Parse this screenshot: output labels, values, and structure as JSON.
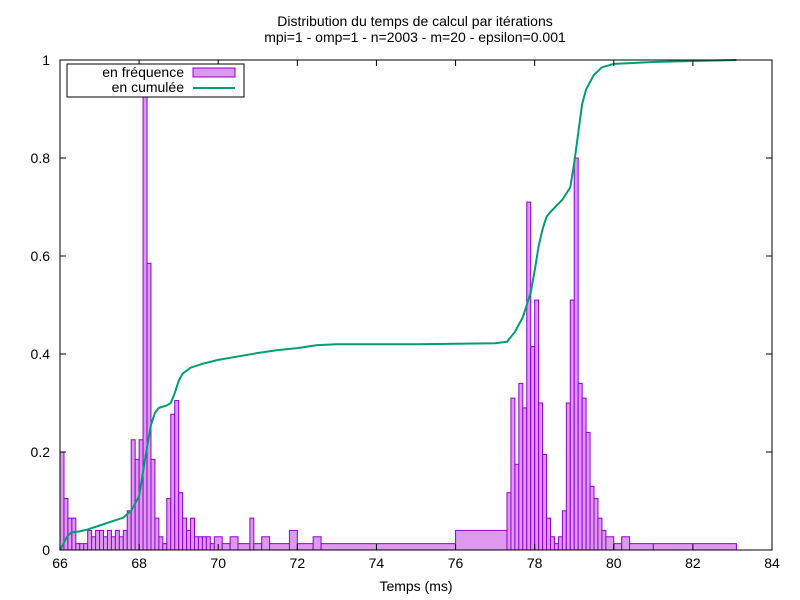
{
  "chart_data": {
    "type": "bar",
    "title": "Distribution du temps de calcul par itérations",
    "subtitle": "mpi=1 - omp=1 - n=2003 - m=20 - epsilon=0.001",
    "xlabel": "Temps (ms)",
    "ylabel": "",
    "xlim": [
      66,
      84
    ],
    "ylim": [
      0,
      1
    ],
    "xticks": [
      "66",
      "68",
      "70",
      "72",
      "74",
      "76",
      "78",
      "80",
      "82",
      "84"
    ],
    "yticks": [
      "0",
      "0.2",
      "0.4",
      "0.6",
      "0.8",
      "1"
    ],
    "grid": false,
    "legend_position": "top-left",
    "colors": {
      "bar_fill": "#dd99ee",
      "bar_stroke": "#9400d3",
      "line": "#009e73"
    },
    "series": [
      {
        "name": "en fréquence",
        "type": "bar",
        "bars": [
          [
            66.0,
            66.1,
            0.2
          ],
          [
            66.1,
            66.2,
            0.105
          ],
          [
            66.2,
            66.3,
            0.065
          ],
          [
            66.3,
            66.4,
            0.065
          ],
          [
            66.4,
            66.5,
            0.013
          ],
          [
            66.5,
            66.6,
            0.013
          ],
          [
            66.6,
            66.7,
            0.013
          ],
          [
            66.7,
            66.8,
            0.04
          ],
          [
            66.8,
            66.9,
            0.027
          ],
          [
            66.9,
            67.0,
            0.04
          ],
          [
            67.0,
            67.1,
            0.04
          ],
          [
            67.1,
            67.2,
            0.027
          ],
          [
            67.2,
            67.3,
            0.04
          ],
          [
            67.3,
            67.4,
            0.027
          ],
          [
            67.4,
            67.5,
            0.04
          ],
          [
            67.5,
            67.6,
            0.027
          ],
          [
            67.6,
            67.7,
            0.04
          ],
          [
            67.7,
            67.8,
            0.08
          ],
          [
            67.8,
            67.9,
            0.225
          ],
          [
            67.9,
            68.0,
            0.185
          ],
          [
            68.0,
            68.1,
            0.225
          ],
          [
            68.1,
            68.2,
            0.945
          ],
          [
            68.2,
            68.3,
            0.585
          ],
          [
            68.3,
            68.4,
            0.185
          ],
          [
            68.4,
            68.5,
            0.065
          ],
          [
            68.5,
            68.6,
            0.027
          ],
          [
            68.6,
            68.7,
            0.013
          ],
          [
            68.7,
            68.8,
            0.105
          ],
          [
            68.8,
            68.9,
            0.277
          ],
          [
            68.9,
            69.0,
            0.305
          ],
          [
            69.0,
            69.1,
            0.117
          ],
          [
            69.1,
            69.2,
            0.065
          ],
          [
            69.2,
            69.3,
            0.04
          ],
          [
            69.3,
            69.4,
            0.065
          ],
          [
            69.4,
            69.5,
            0.027
          ],
          [
            69.5,
            69.6,
            0.027
          ],
          [
            69.6,
            69.7,
            0.027
          ],
          [
            69.7,
            69.8,
            0.027
          ],
          [
            69.8,
            69.9,
            0.013
          ],
          [
            69.9,
            70.1,
            0.027
          ],
          [
            70.1,
            70.3,
            0.013
          ],
          [
            70.3,
            70.5,
            0.027
          ],
          [
            70.5,
            70.8,
            0.013
          ],
          [
            70.8,
            70.9,
            0.065
          ],
          [
            70.9,
            71.1,
            0.013
          ],
          [
            71.1,
            71.3,
            0.027
          ],
          [
            71.3,
            71.8,
            0.013
          ],
          [
            71.8,
            72.0,
            0.04
          ],
          [
            72.0,
            72.4,
            0.013
          ],
          [
            72.4,
            72.6,
            0.027
          ],
          [
            72.6,
            76.0,
            0.013
          ],
          [
            76.0,
            77.3,
            0.04
          ],
          [
            77.3,
            77.4,
            0.117
          ],
          [
            77.4,
            77.5,
            0.31
          ],
          [
            77.5,
            77.6,
            0.175
          ],
          [
            77.6,
            77.7,
            0.34
          ],
          [
            77.7,
            77.8,
            0.29
          ],
          [
            77.8,
            77.9,
            0.71
          ],
          [
            77.9,
            78.0,
            0.415
          ],
          [
            77.9,
            78.0,
            0.415
          ],
          [
            78.0,
            78.1,
            0.51
          ],
          [
            78.1,
            78.2,
            0.3
          ],
          [
            78.2,
            78.3,
            0.195
          ],
          [
            78.3,
            78.4,
            0.065
          ],
          [
            78.4,
            78.5,
            0.027
          ],
          [
            78.5,
            78.6,
            0.013
          ],
          [
            78.6,
            78.7,
            0.027
          ],
          [
            78.7,
            78.8,
            0.08
          ],
          [
            78.8,
            78.9,
            0.3
          ],
          [
            78.9,
            79.0,
            0.51
          ],
          [
            79.0,
            79.1,
            0.8
          ],
          [
            79.1,
            79.2,
            0.34
          ],
          [
            79.2,
            79.3,
            0.31
          ],
          [
            79.3,
            79.4,
            0.24
          ],
          [
            79.4,
            79.5,
            0.13
          ],
          [
            79.5,
            79.6,
            0.105
          ],
          [
            79.6,
            79.7,
            0.065
          ],
          [
            79.7,
            79.8,
            0.04
          ],
          [
            79.8,
            80.0,
            0.027
          ],
          [
            80.0,
            80.2,
            0.013
          ],
          [
            80.2,
            80.4,
            0.027
          ],
          [
            80.4,
            81.0,
            0.013
          ],
          [
            81.0,
            83.1,
            0.013
          ]
        ]
      },
      {
        "name": "en cumulée",
        "type": "line",
        "points": [
          [
            66.0,
            0.0
          ],
          [
            66.1,
            0.015
          ],
          [
            66.2,
            0.03
          ],
          [
            66.3,
            0.036
          ],
          [
            66.5,
            0.038
          ],
          [
            66.7,
            0.042
          ],
          [
            67.0,
            0.05
          ],
          [
            67.3,
            0.058
          ],
          [
            67.6,
            0.066
          ],
          [
            67.8,
            0.08
          ],
          [
            68.0,
            0.11
          ],
          [
            68.1,
            0.16
          ],
          [
            68.2,
            0.21
          ],
          [
            68.3,
            0.255
          ],
          [
            68.4,
            0.28
          ],
          [
            68.5,
            0.29
          ],
          [
            68.7,
            0.295
          ],
          [
            68.8,
            0.3
          ],
          [
            68.9,
            0.32
          ],
          [
            69.0,
            0.345
          ],
          [
            69.1,
            0.36
          ],
          [
            69.3,
            0.372
          ],
          [
            69.6,
            0.38
          ],
          [
            70.0,
            0.388
          ],
          [
            70.5,
            0.395
          ],
          [
            71.0,
            0.402
          ],
          [
            71.5,
            0.408
          ],
          [
            72.0,
            0.412
          ],
          [
            72.5,
            0.418
          ],
          [
            73.0,
            0.42
          ],
          [
            75.0,
            0.42
          ],
          [
            76.0,
            0.421
          ],
          [
            77.0,
            0.422
          ],
          [
            77.3,
            0.425
          ],
          [
            77.5,
            0.445
          ],
          [
            77.7,
            0.475
          ],
          [
            77.9,
            0.525
          ],
          [
            78.0,
            0.57
          ],
          [
            78.1,
            0.62
          ],
          [
            78.2,
            0.655
          ],
          [
            78.3,
            0.68
          ],
          [
            78.4,
            0.69
          ],
          [
            78.7,
            0.715
          ],
          [
            78.9,
            0.74
          ],
          [
            79.0,
            0.79
          ],
          [
            79.1,
            0.85
          ],
          [
            79.2,
            0.91
          ],
          [
            79.3,
            0.94
          ],
          [
            79.5,
            0.97
          ],
          [
            79.7,
            0.985
          ],
          [
            80.0,
            0.992
          ],
          [
            81.0,
            0.996
          ],
          [
            82.0,
            0.998
          ],
          [
            83.1,
            1.0
          ]
        ]
      }
    ]
  }
}
